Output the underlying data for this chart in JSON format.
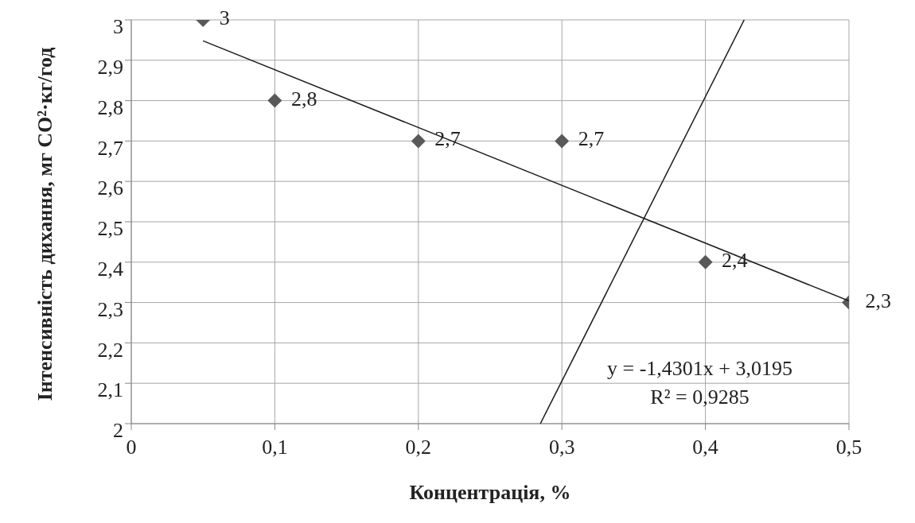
{
  "chart_data": {
    "type": "scatter",
    "xlabel": "Концентрація, %",
    "ylabel": "Інтенсивність дихання, мг CO²·кг/год",
    "xlim": [
      0,
      0.5
    ],
    "ylim": [
      2,
      3
    ],
    "xticks": [
      0,
      {
        "value": 0.1,
        "label": "0,1"
      },
      {
        "value": 0.2,
        "label": "0,2"
      },
      {
        "value": 0.3,
        "label": "0,3"
      },
      {
        "value": 0.4,
        "label": "0,4"
      },
      {
        "value": 0.5,
        "label": "0,5"
      }
    ],
    "yticks": [
      2,
      {
        "value": 2.1,
        "label": "2,1"
      },
      {
        "value": 2.2,
        "label": "2,2"
      },
      {
        "value": 2.3,
        "label": "2,3"
      },
      {
        "value": 2.4,
        "label": "2,4"
      },
      {
        "value": 2.5,
        "label": "2,5"
      },
      {
        "value": 2.6,
        "label": "2,6"
      },
      {
        "value": 2.7,
        "label": "2,7"
      },
      {
        "value": 2.8,
        "label": "2,8"
      },
      {
        "value": 2.9,
        "label": "2,9"
      },
      3
    ],
    "grid": true,
    "series": [
      {
        "marker": "diamond",
        "color": "#595959",
        "x": [
          0.05,
          0.1,
          0.2,
          0.3,
          0.4,
          0.5
        ],
        "values": [
          3,
          2.8,
          2.7,
          2.7,
          2.4,
          2.3
        ],
        "value_labels": [
          "3",
          "2,8",
          "2,7",
          "2,7",
          "2,4",
          "2,3"
        ]
      },
      {
        "type": "line",
        "marker": "none",
        "color": "#1a1a1a",
        "x": [
          0.05,
          0.5
        ],
        "values": [
          2.948,
          2.304
        ]
      },
      {
        "type": "line",
        "marker": "none",
        "color": "#1a1a1a",
        "x": [
          0.285,
          0.427
        ],
        "values": [
          2,
          3
        ]
      }
    ],
    "annotations": [
      "y = -1,4301x + 3,0195",
      "R² = 0,9285"
    ]
  }
}
